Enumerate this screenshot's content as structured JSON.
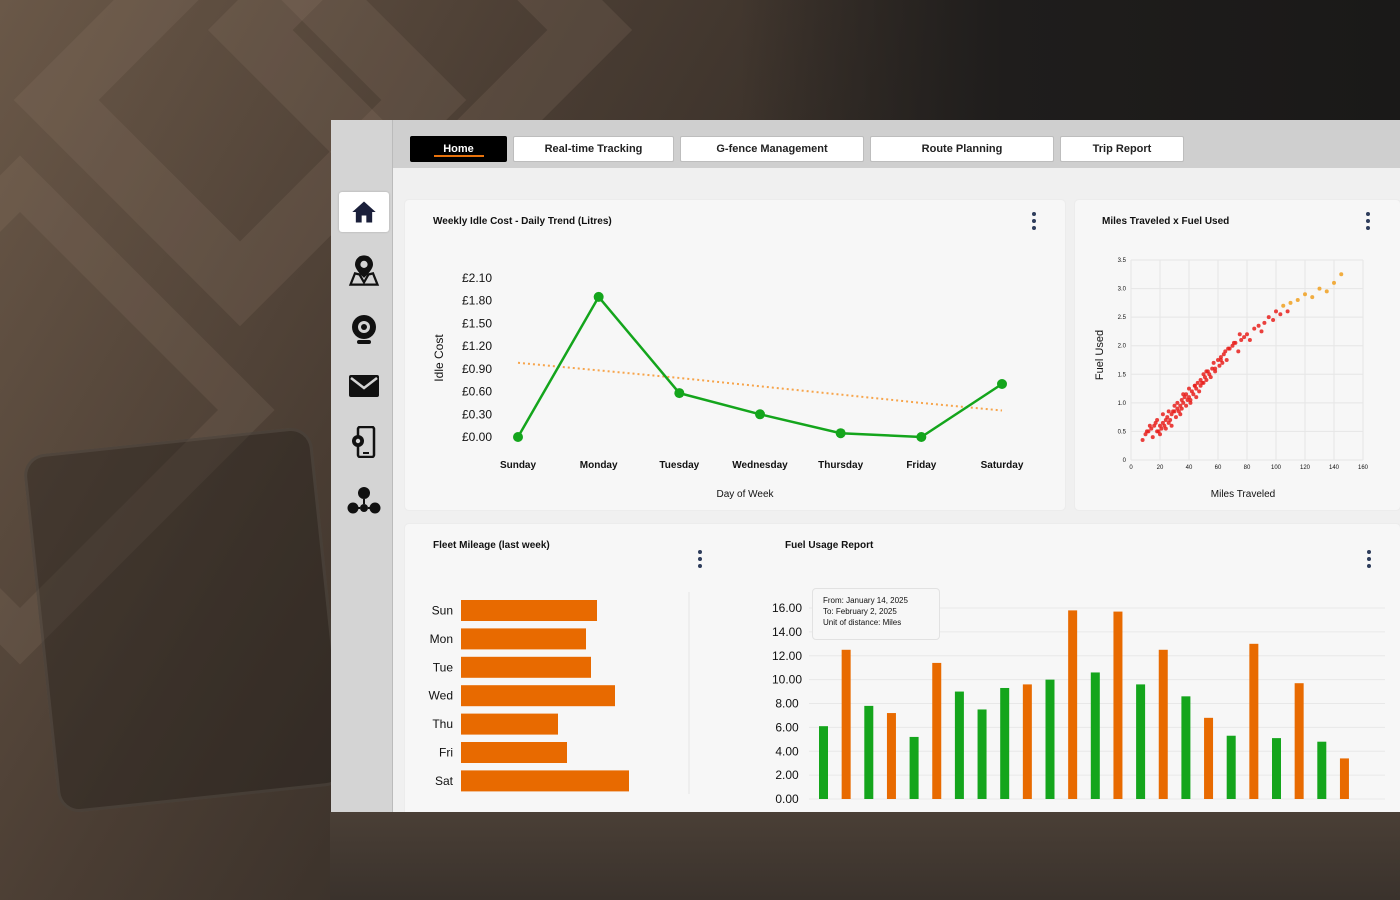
{
  "nav": {
    "tabs": [
      {
        "label": "Home",
        "active": true
      },
      {
        "label": "Real-time Tracking"
      },
      {
        "label": "G-fence Management"
      },
      {
        "label": "Route Planning"
      },
      {
        "label": "Trip Report"
      }
    ]
  },
  "sidebar": {
    "items": [
      {
        "icon": "home-icon",
        "active": true
      },
      {
        "icon": "map-pin-icon"
      },
      {
        "icon": "webcam-icon"
      },
      {
        "icon": "mail-icon"
      },
      {
        "icon": "mobile-settings-icon"
      },
      {
        "icon": "network-icon"
      }
    ]
  },
  "colors": {
    "accent": "#e8720c",
    "green": "#14a51c",
    "red": "#e8201c",
    "orange": "#e86a00",
    "trend": "#f7a44a"
  },
  "idle_chart_title": "Weekly Idle Cost - Daily Trend (Litres)",
  "scatter_title": "Miles Traveled x Fuel Used",
  "mileage_title": "Fleet Mileage (last week)",
  "fuel_title": "Fuel Usage Report",
  "fuel_info": {
    "from": "From: January 14, 2025",
    "to": "To: February 2, 2025",
    "unit": "Unit of distance: Miles"
  },
  "chart_data": [
    {
      "type": "line",
      "title": "Weekly Idle Cost - Daily Trend (Litres)",
      "xlabel": "Day of Week",
      "ylabel": "Idle Cost",
      "categories": [
        "Sunday",
        "Monday",
        "Tuesday",
        "Wednesday",
        "Thursday",
        "Friday",
        "Saturday"
      ],
      "values": [
        0.0,
        1.85,
        0.58,
        0.3,
        0.05,
        0.0,
        0.7
      ],
      "trend": [
        0.98,
        0.88,
        0.78,
        0.67,
        0.56,
        0.45,
        0.35
      ],
      "y_ticks": [
        "£0.00",
        "£0.30",
        "£0.60",
        "£0.90",
        "£1.20",
        "£1.50",
        "£1.80",
        "£2.10"
      ],
      "ylim": [
        0,
        2.1
      ],
      "legend": "none"
    },
    {
      "type": "scatter",
      "title": "Miles Traveled x Fuel Used",
      "xlabel": "Miles Traveled",
      "ylabel": "Fuel Used",
      "x_ticks": [
        "0",
        "20",
        "40",
        "60",
        "80",
        "100",
        "120",
        "140",
        "160"
      ],
      "y_ticks": [
        "0",
        "0.5",
        "1.0",
        "1.5",
        "2.0",
        "2.5",
        "3.0",
        "3.5"
      ],
      "xlim": [
        0,
        160
      ],
      "ylim": [
        0,
        3.5
      ],
      "grid": true,
      "x": [
        10,
        12,
        14,
        15,
        16,
        18,
        18,
        20,
        20,
        21,
        22,
        22,
        24,
        24,
        25,
        26,
        26,
        27,
        28,
        28,
        30,
        30,
        31,
        32,
        32,
        33,
        34,
        35,
        35,
        36,
        37,
        38,
        38,
        39,
        40,
        40,
        41,
        42,
        43,
        44,
        45,
        45,
        46,
        47,
        48,
        48,
        50,
        50,
        51,
        52,
        53,
        54,
        55,
        56,
        57,
        58,
        60,
        61,
        62,
        63,
        64,
        65,
        66,
        68,
        70,
        72,
        74,
        76,
        78,
        80,
        82,
        85,
        88,
        90,
        92,
        95,
        98,
        100,
        103,
        105,
        108,
        110,
        115,
        120,
        125,
        130,
        135,
        140,
        145,
        8,
        11,
        13,
        17,
        19,
        23,
        29,
        34,
        36,
        41,
        44,
        49,
        52,
        58,
        62,
        67,
        71,
        75
      ],
      "y": [
        0.45,
        0.5,
        0.55,
        0.4,
        0.6,
        0.5,
        0.7,
        0.6,
        0.45,
        0.55,
        0.65,
        0.8,
        0.7,
        0.55,
        0.75,
        0.65,
        0.85,
        0.7,
        0.8,
        0.6,
        0.85,
        0.95,
        0.75,
        0.9,
        1.0,
        0.85,
        0.95,
        1.05,
        0.9,
        1.0,
        1.1,
        0.95,
        1.15,
        1.05,
        1.1,
        1.25,
        1.0,
        1.2,
        1.15,
        1.3,
        1.25,
        1.1,
        1.35,
        1.2,
        1.4,
        1.3,
        1.35,
        1.5,
        1.45,
        1.4,
        1.55,
        1.5,
        1.45,
        1.6,
        1.7,
        1.55,
        1.75,
        1.65,
        1.8,
        1.7,
        1.85,
        1.9,
        1.75,
        1.95,
        2.0,
        2.05,
        1.9,
        2.1,
        2.15,
        2.2,
        2.1,
        2.3,
        2.35,
        2.25,
        2.4,
        2.5,
        2.45,
        2.6,
        2.55,
        2.7,
        2.6,
        2.75,
        2.8,
        2.9,
        2.85,
        3.0,
        2.95,
        3.1,
        3.25,
        0.35,
        0.5,
        0.6,
        0.65,
        0.5,
        0.6,
        0.85,
        0.8,
        1.15,
        1.05,
        1.3,
        1.35,
        1.55,
        1.6,
        1.75,
        1.95,
        2.05,
        2.2
      ]
    },
    {
      "type": "bar",
      "orientation": "horizontal",
      "title": "Fleet Mileage (last week)",
      "categories": [
        "Sun",
        "Mon",
        "Tue",
        "Wed",
        "Thu",
        "Fri",
        "Sat"
      ],
      "values": [
        136,
        125,
        130,
        154,
        97,
        106,
        168
      ],
      "legend": "none"
    },
    {
      "type": "bar",
      "title": "Fuel Usage Report",
      "y_ticks": [
        "0.00",
        "2.00",
        "4.00",
        "6.00",
        "8.00",
        "10.00",
        "12.00",
        "14.00",
        "16.00"
      ],
      "ylim": [
        0,
        16
      ],
      "series_colors": [
        "green",
        "orange"
      ],
      "values": [
        6.1,
        12.5,
        7.8,
        7.2,
        5.2,
        11.4,
        9.0,
        7.5,
        9.3,
        9.6,
        10.0,
        15.8,
        10.6,
        15.7,
        9.6,
        12.5,
        8.6,
        6.8,
        5.3,
        13.0,
        5.1,
        9.7,
        4.8,
        3.4
      ],
      "bar_colors": [
        "green",
        "orange",
        "green",
        "orange",
        "green",
        "orange",
        "green",
        "green",
        "green",
        "orange",
        "green",
        "orange",
        "green",
        "orange",
        "green",
        "orange",
        "green",
        "orange",
        "green",
        "orange",
        "green",
        "orange",
        "green",
        "orange"
      ],
      "legend": "none"
    }
  ]
}
